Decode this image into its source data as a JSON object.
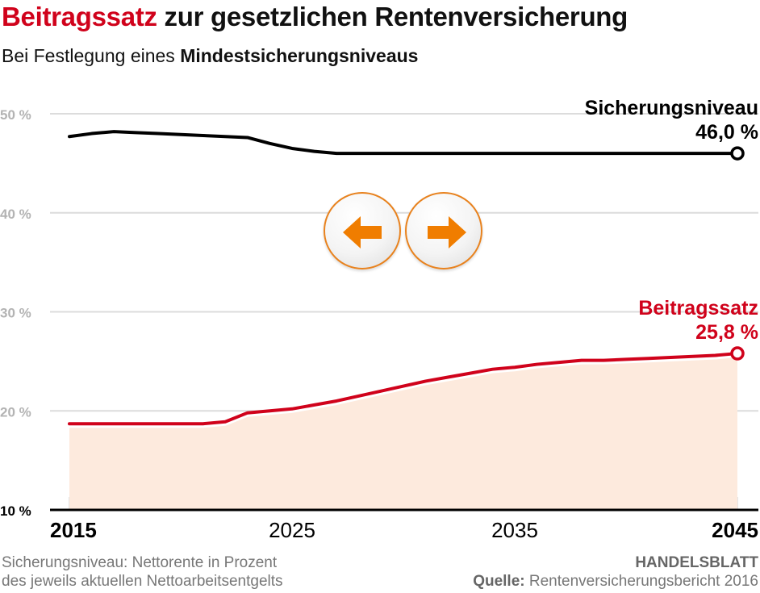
{
  "header": {
    "title_accent": "Beitragssatz",
    "title_rest": " zur gesetzlichen Rentenversicherung",
    "subtitle_plain": "Bei Festlegung eines ",
    "subtitle_bold": "Mindestsicherungsniveaus"
  },
  "navigation": {
    "prev_icon": "arrow-left-icon",
    "next_icon": "arrow-right-icon",
    "accent_color": "#f07d00"
  },
  "chart_data": {
    "type": "line",
    "title": "Beitragssatz zur gesetzlichen Rentenversicherung",
    "subtitle": "Bei Festlegung eines Mindestsicherungsniveaus",
    "xlabel": "",
    "ylabel": "",
    "xlim": [
      2015,
      2045
    ],
    "ylim": [
      10,
      50
    ],
    "yticks": [
      10,
      20,
      30,
      40,
      50
    ],
    "ytick_labels": [
      "10 %",
      "20 %",
      "30 %",
      "40 %",
      "50 %"
    ],
    "xticks": [
      2015,
      2025,
      2035,
      2045
    ],
    "xtick_labels": [
      "2015",
      "2025",
      "2035",
      "2045"
    ],
    "grid": true,
    "series": [
      {
        "name": "Sicherungsniveau",
        "label": "Sicherungsniveau",
        "end_value_label": "46,0 %",
        "color": "#000000",
        "fill": false,
        "x": [
          2015,
          2016,
          2017,
          2018,
          2019,
          2020,
          2021,
          2022,
          2023,
          2024,
          2025,
          2026,
          2027,
          2030,
          2035,
          2040,
          2045
        ],
        "values": [
          47.7,
          48.0,
          48.2,
          48.1,
          48.0,
          47.9,
          47.8,
          47.7,
          47.6,
          47.0,
          46.5,
          46.2,
          46.0,
          46.0,
          46.0,
          46.0,
          46.0
        ]
      },
      {
        "name": "Beitragssatz",
        "label": "Beitragssatz",
        "end_value_label": "25,8 %",
        "color": "#d0021b",
        "fill": true,
        "fill_color": "#fdeadd",
        "x": [
          2015,
          2016,
          2017,
          2018,
          2019,
          2020,
          2021,
          2022,
          2023,
          2024,
          2025,
          2026,
          2027,
          2028,
          2029,
          2030,
          2031,
          2032,
          2033,
          2034,
          2035,
          2036,
          2037,
          2038,
          2039,
          2040,
          2041,
          2042,
          2043,
          2044,
          2045
        ],
        "values": [
          18.7,
          18.7,
          18.7,
          18.7,
          18.7,
          18.7,
          18.7,
          18.9,
          19.8,
          20.0,
          20.2,
          20.6,
          21.0,
          21.5,
          22.0,
          22.5,
          23.0,
          23.4,
          23.8,
          24.2,
          24.4,
          24.7,
          24.9,
          25.1,
          25.1,
          25.2,
          25.3,
          25.4,
          25.5,
          25.6,
          25.8
        ]
      }
    ]
  },
  "footer": {
    "note_line1": "Sicherungsniveau: Nettorente in Prozent",
    "note_line2": "des jeweils aktuellen Nettoarbeitsentgelts",
    "brand": "HANDELSBLATT",
    "source_label": "Quelle:",
    "source_text": " Rentenversicherungsbericht 2016"
  }
}
